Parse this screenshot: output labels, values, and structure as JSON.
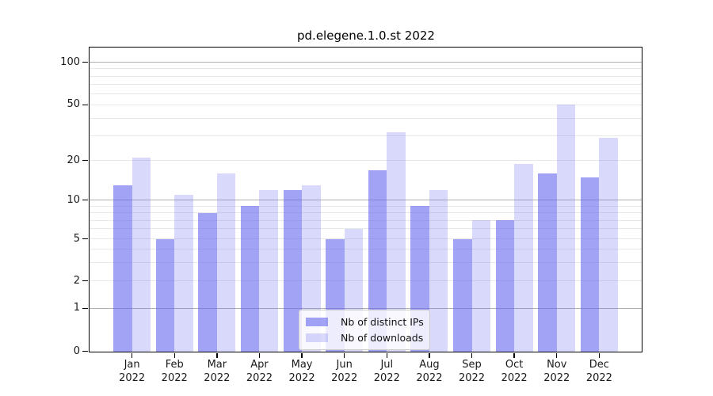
{
  "chart_data": {
    "type": "bar",
    "title": "pd.elegene.1.0.st 2022",
    "categories": [
      "Jan",
      "Feb",
      "Mar",
      "Apr",
      "May",
      "Jun",
      "Jul",
      "Aug",
      "Sep",
      "Oct",
      "Nov",
      "Dec"
    ],
    "year": "2022",
    "series": [
      {
        "name": "Nb of distinct IPs",
        "color": "rgba(102,102,238,0.6)",
        "values": [
          13,
          5,
          8,
          9,
          12,
          5,
          17,
          9,
          5,
          7,
          16,
          15
        ]
      },
      {
        "name": "Nb of downloads",
        "color": "rgba(102,102,238,0.25)",
        "values": [
          21,
          11,
          16,
          12,
          13,
          6,
          32,
          12,
          7,
          19,
          50,
          29
        ]
      }
    ],
    "xlabel": "",
    "ylabel": "",
    "yscale": "log-like (symlog, linear below 1)",
    "ylim": [
      0,
      130
    ],
    "y_ticks": [
      0,
      1,
      2,
      5,
      10,
      20,
      50,
      100
    ],
    "y_tick_labels": [
      "0",
      "1",
      "2",
      "5",
      "10",
      "20",
      "50",
      "100"
    ],
    "y_major_gridlines": [
      1,
      10,
      100
    ],
    "y_minor_gridlines": [
      2,
      3,
      4,
      5,
      6,
      7,
      8,
      9,
      20,
      30,
      40,
      50,
      60,
      70,
      80,
      90
    ],
    "grid": true,
    "legend_position": "lower center"
  },
  "colors": {
    "bar_base": "#6666ee",
    "major_grid": "#b0b0b0",
    "minor_grid": "#e8e8e8",
    "axis": "#000000",
    "background": "#ffffff"
  }
}
